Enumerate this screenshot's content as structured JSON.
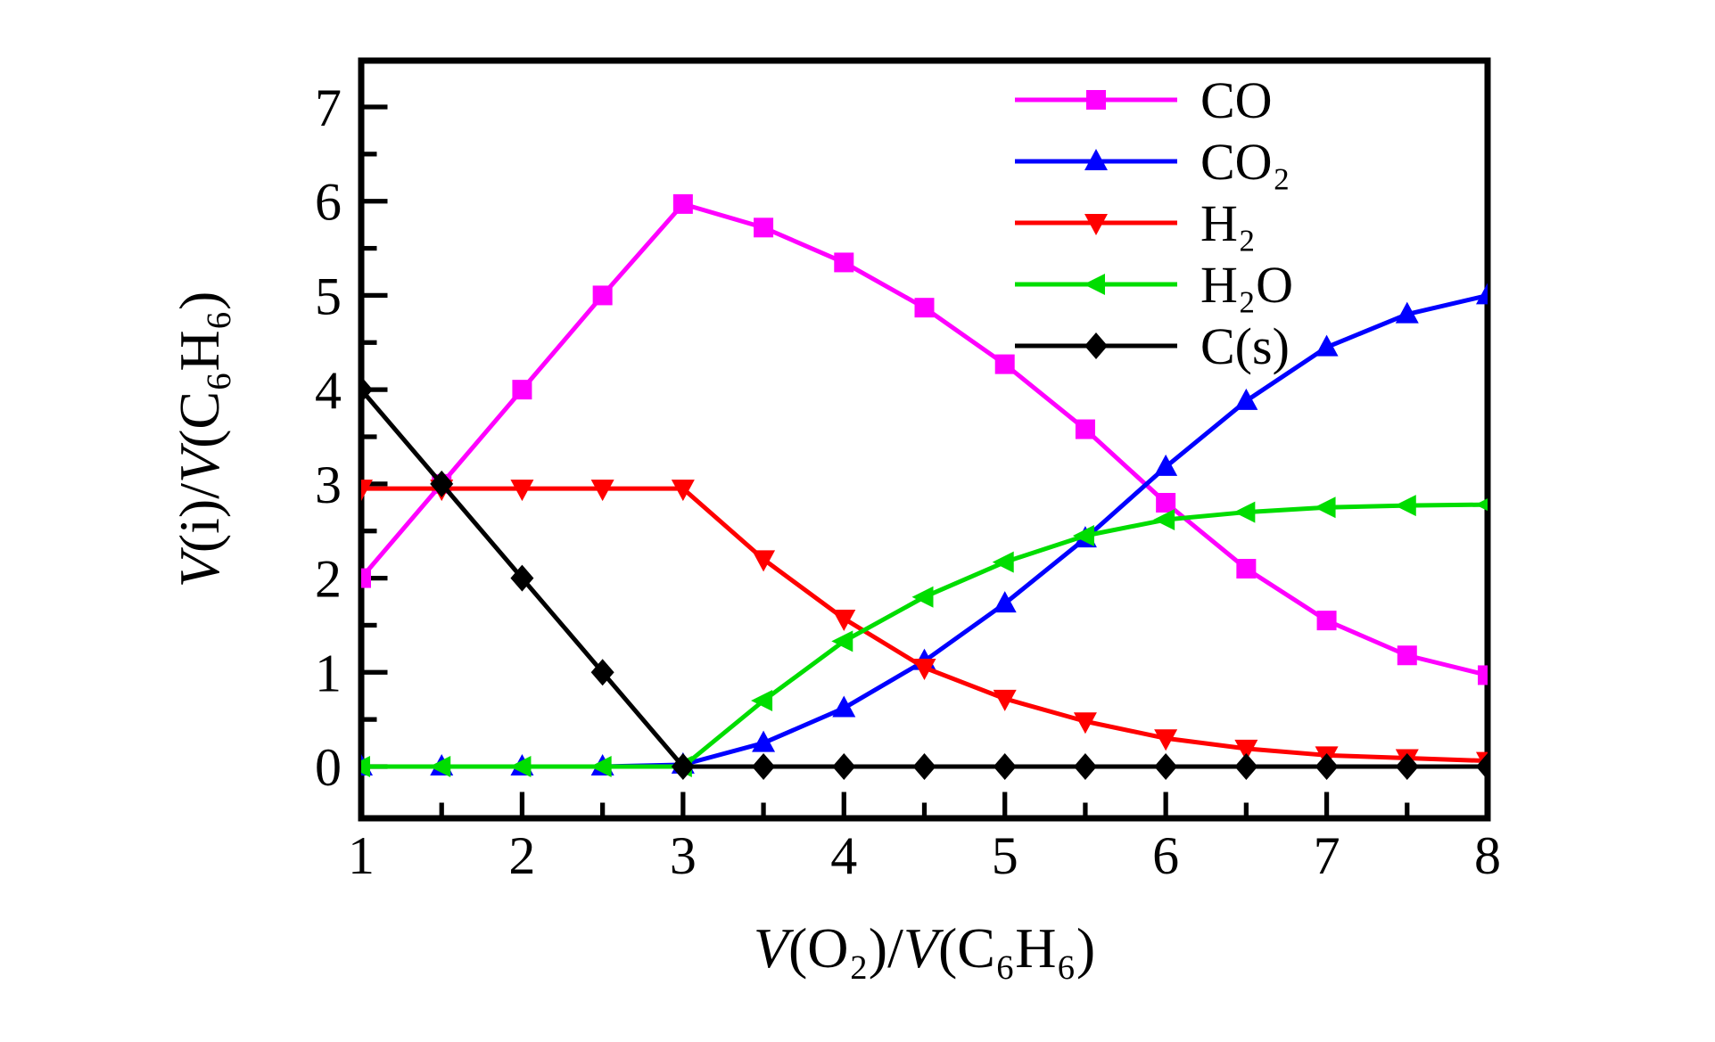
{
  "chart_data": {
    "type": "line",
    "title": "",
    "xlabel_runs": [
      {
        "text": "V",
        "italic": true
      },
      {
        "text": "(O₂)/",
        "italic": false
      },
      {
        "text": "V",
        "italic": true
      },
      {
        "text": "(C₆H₆)",
        "italic": false
      }
    ],
    "ylabel_runs": [
      {
        "text": "V",
        "italic": true
      },
      {
        "text": "(i)/",
        "italic": false
      },
      {
        "text": "V",
        "italic": true
      },
      {
        "text": "(C₆H₆)",
        "italic": false
      }
    ],
    "xlim": [
      1,
      8
    ],
    "ylim": [
      0,
      7
    ],
    "x_ticks": [
      1,
      2,
      3,
      4,
      5,
      6,
      7,
      8
    ],
    "x_minor_ticks": [
      1.5,
      2.5,
      3.5,
      4.5,
      5.5,
      6.5,
      7.5
    ],
    "y_ticks": [
      0,
      1,
      2,
      3,
      4,
      5,
      6,
      7
    ],
    "y_minor_ticks": [
      0.5,
      1.5,
      2.5,
      3.5,
      4.5,
      5.5,
      6.5
    ],
    "grid": false,
    "legend_position": "top-right",
    "background": "#ffffff",
    "axis_color": "#000000",
    "x": [
      1,
      1.5,
      2,
      2.5,
      3,
      3.5,
      4,
      4.5,
      5,
      5.5,
      6,
      6.5,
      7,
      7.5,
      8
    ],
    "series": [
      {
        "name": "CO",
        "color": "#ff00ff",
        "marker": "square",
        "values": [
          2,
          3,
          4,
          5,
          5.97,
          5.72,
          5.35,
          4.87,
          4.27,
          3.58,
          2.8,
          2.1,
          1.55,
          1.18,
          0.97
        ]
      },
      {
        "name": "CO₂",
        "color": "#0000ff",
        "marker": "triangle-up",
        "values": [
          0,
          0,
          0,
          0,
          0.02,
          0.25,
          0.62,
          1.12,
          1.73,
          2.42,
          3.18,
          3.88,
          4.45,
          4.8,
          5.0
        ]
      },
      {
        "name": "H₂",
        "color": "#ff0000",
        "marker": "triangle-down",
        "values": [
          2.95,
          2.95,
          2.95,
          2.95,
          2.95,
          2.2,
          1.57,
          1.05,
          0.72,
          0.48,
          0.3,
          0.19,
          0.12,
          0.09,
          0.06
        ]
      },
      {
        "name": "H₂O",
        "color": "#00dd00",
        "marker": "triangle-left",
        "values": [
          0,
          0,
          0,
          0,
          0,
          0.7,
          1.33,
          1.8,
          2.17,
          2.45,
          2.62,
          2.7,
          2.75,
          2.77,
          2.78
        ]
      },
      {
        "name": "C(s)",
        "color": "#000000",
        "marker": "diamond",
        "values": [
          4,
          3,
          2,
          1,
          0,
          0,
          0,
          0,
          0,
          0,
          0,
          0,
          0,
          0,
          0
        ]
      }
    ]
  }
}
